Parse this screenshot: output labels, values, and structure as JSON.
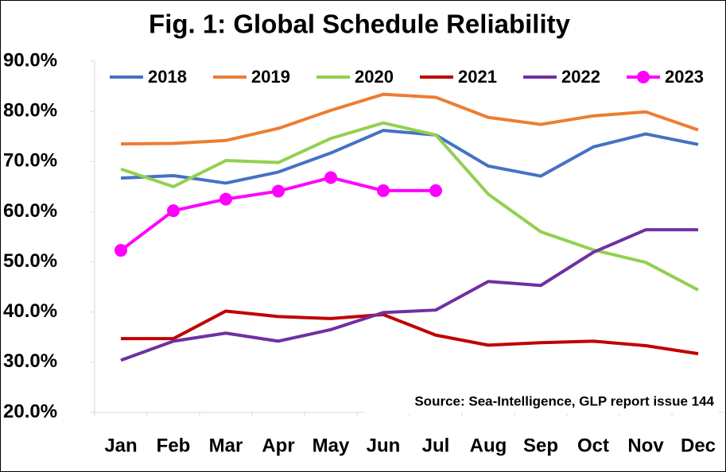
{
  "chart_data": {
    "type": "line",
    "title": "Fig. 1: Global Schedule Reliability",
    "annotation": "Source: Sea-Intelligence, GLP report issue 144",
    "categories": [
      "Jan",
      "Feb",
      "Mar",
      "Apr",
      "May",
      "Jun",
      "Jul",
      "Aug",
      "Sep",
      "Oct",
      "Nov",
      "Dec"
    ],
    "series": [
      {
        "name": "2018",
        "color": "#4472c4",
        "values": [
          66.7,
          67.2,
          65.7,
          67.9,
          71.7,
          76.2,
          75.3,
          69.1,
          67.1,
          72.9,
          75.5,
          73.4
        ]
      },
      {
        "name": "2019",
        "color": "#ed7d31",
        "values": [
          73.5,
          73.6,
          74.2,
          76.6,
          80.2,
          83.4,
          82.8,
          78.8,
          77.4,
          79.1,
          79.9,
          76.3
        ]
      },
      {
        "name": "2020",
        "color": "#92d050",
        "values": [
          68.5,
          65.0,
          70.2,
          69.8,
          74.6,
          77.7,
          75.3,
          63.5,
          56.0,
          52.4,
          49.9,
          44.4
        ]
      },
      {
        "name": "2021",
        "color": "#c00000",
        "values": [
          34.7,
          34.7,
          40.2,
          39.1,
          38.7,
          39.5,
          35.4,
          33.4,
          33.9,
          34.2,
          33.3,
          31.7
        ]
      },
      {
        "name": "2022",
        "color": "#7030a0",
        "values": [
          30.4,
          34.2,
          35.8,
          34.2,
          36.5,
          39.9,
          40.4,
          46.1,
          45.3,
          51.9,
          56.4,
          56.4
        ]
      },
      {
        "name": "2023",
        "color": "#ff00ff",
        "markers": true,
        "values": [
          52.3,
          60.2,
          62.5,
          64.1,
          66.8,
          64.2,
          64.2,
          null,
          null,
          null,
          null,
          null
        ]
      }
    ],
    "ylim": [
      20,
      90
    ],
    "yticks": [
      {
        "value": 20,
        "label": "20.0%"
      },
      {
        "value": 30,
        "label": "30.0%"
      },
      {
        "value": 40,
        "label": "40.0%"
      },
      {
        "value": 50,
        "label": "50.0%"
      },
      {
        "value": 60,
        "label": "60.0%"
      },
      {
        "value": 70,
        "label": "70.0%"
      },
      {
        "value": 80,
        "label": "80.0%"
      },
      {
        "value": 90,
        "label": "90.0%"
      }
    ],
    "grid": false,
    "legend": "top"
  }
}
